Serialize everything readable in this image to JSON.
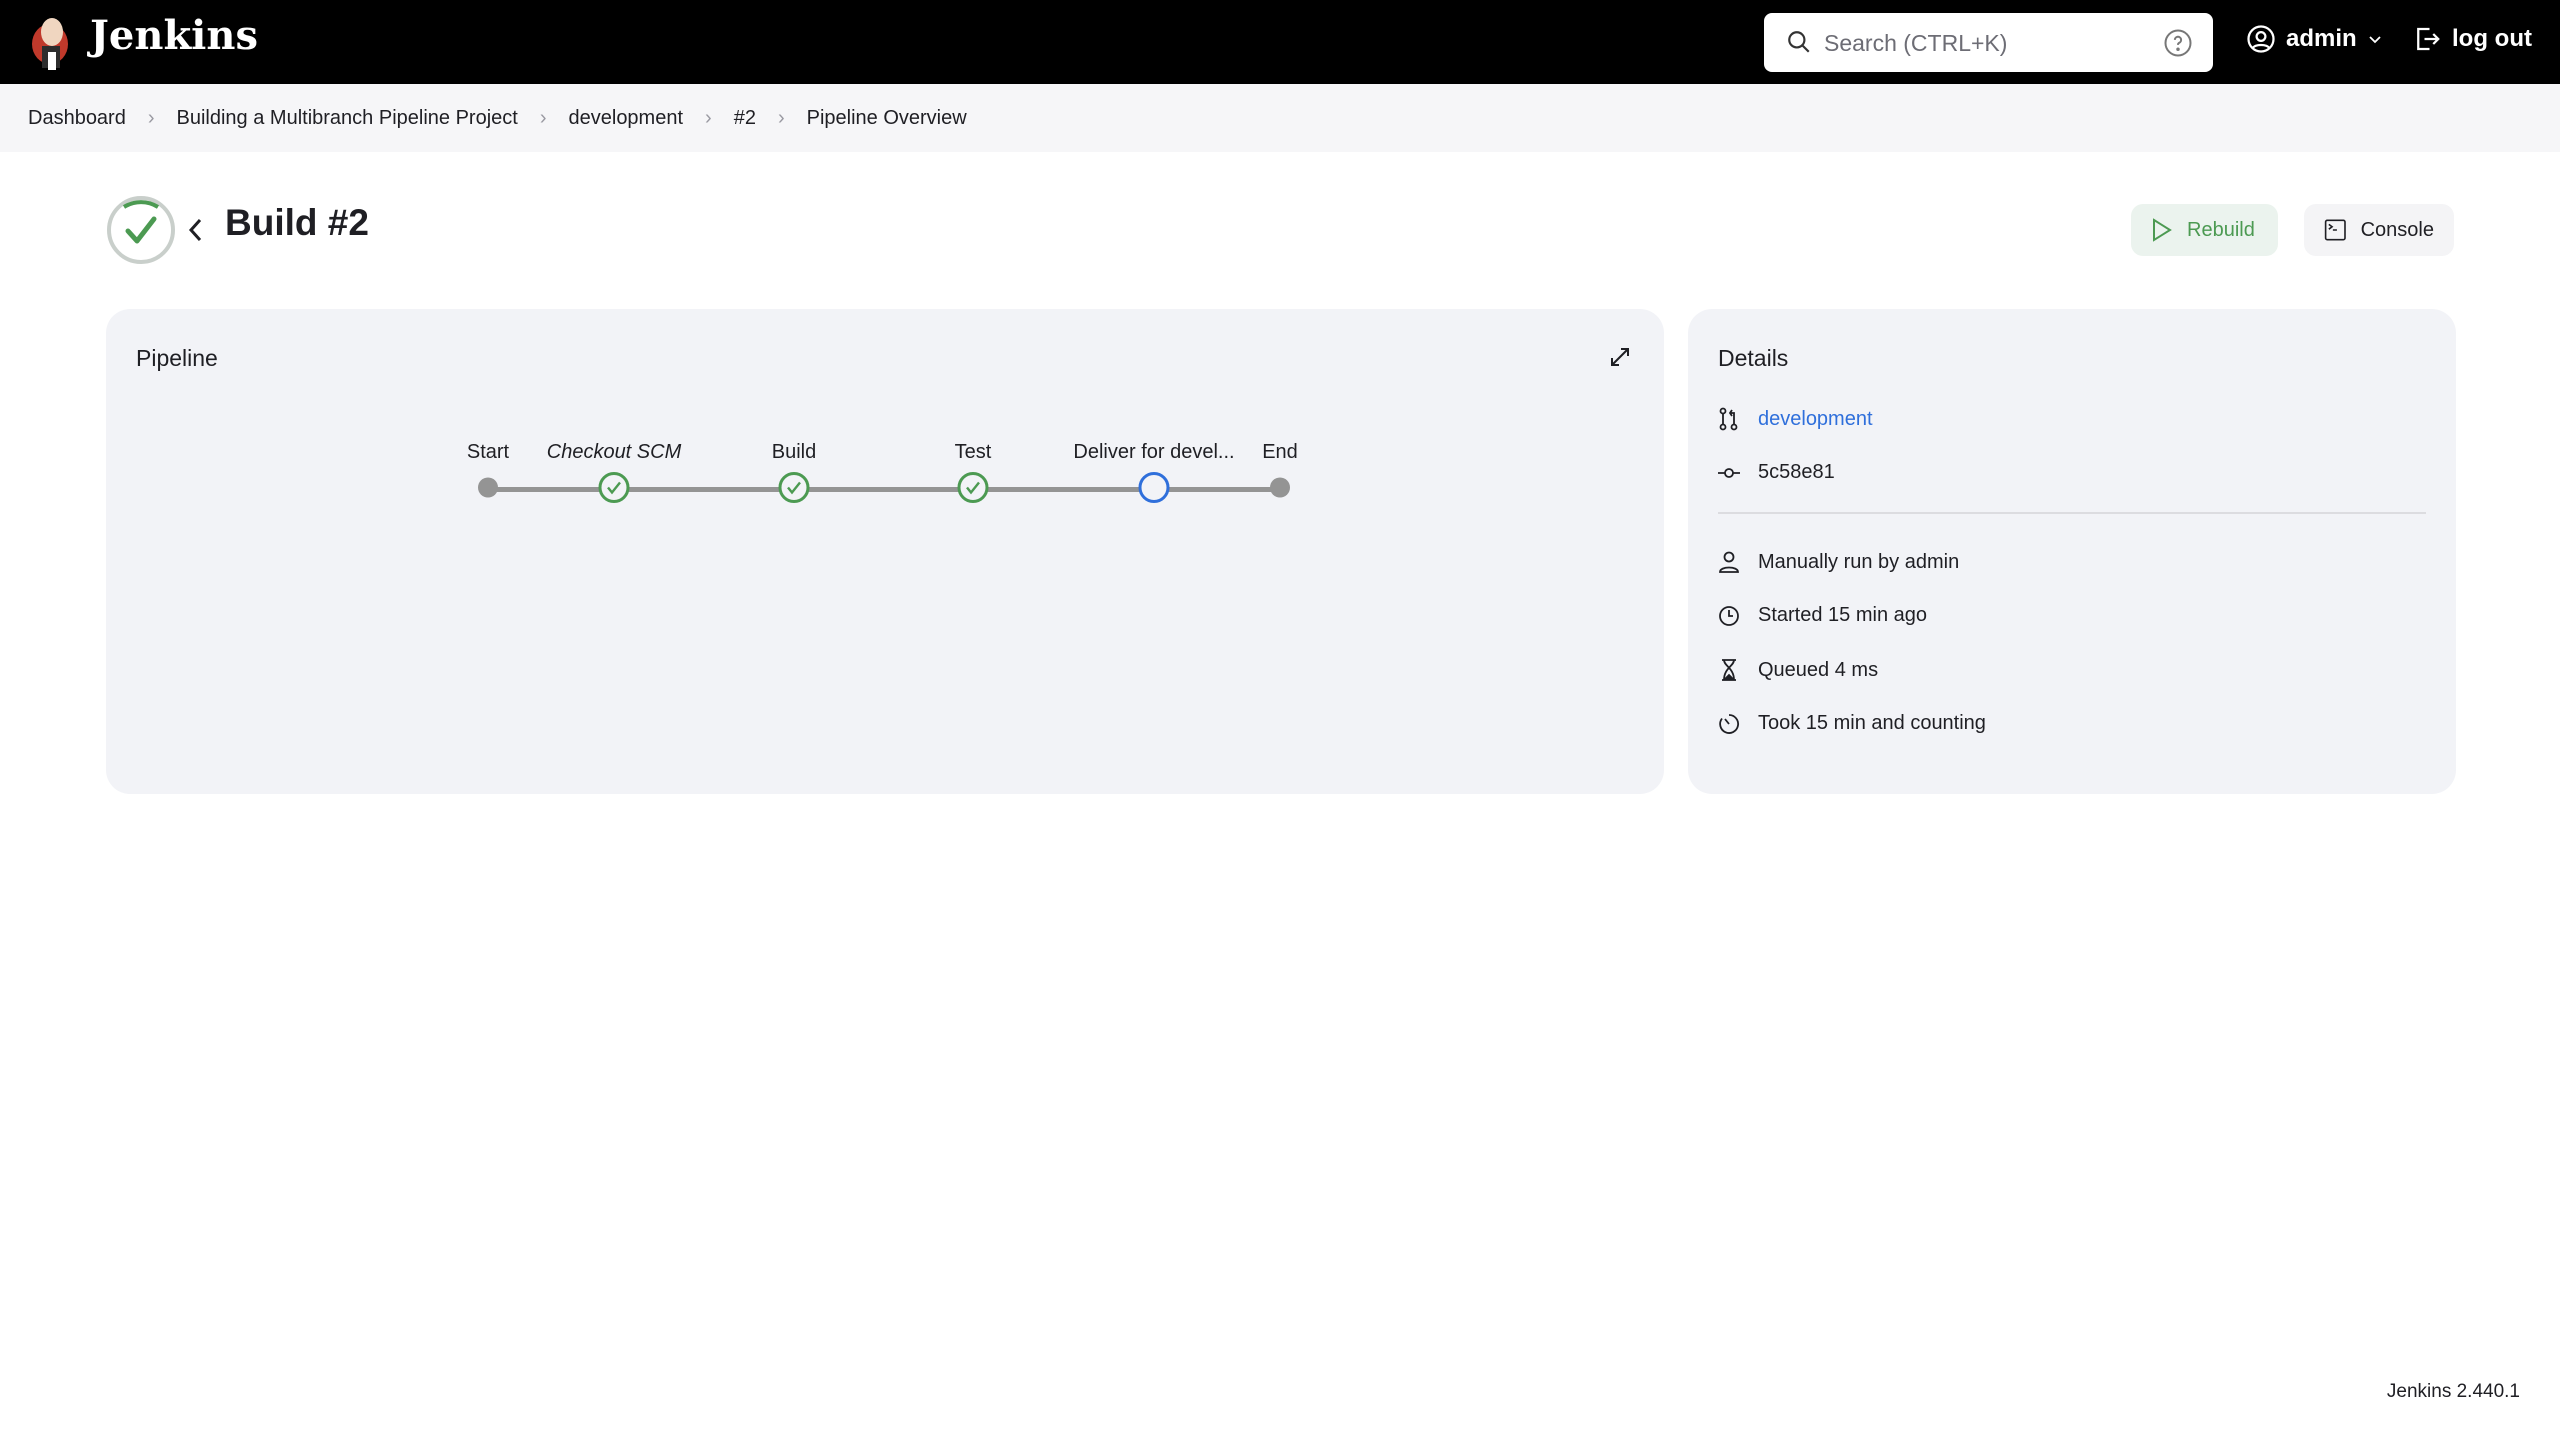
{
  "header": {
    "brand": "Jenkins",
    "search_placeholder": "Search (CTRL+K)",
    "user": "admin",
    "logout": "log out"
  },
  "breadcrumbs": [
    "Dashboard",
    "Building a Multibranch Pipeline Project",
    "development",
    "#2",
    "Pipeline Overview"
  ],
  "build": {
    "title": "Build #2",
    "status": "success",
    "rebuild_label": "Rebuild",
    "console_label": "Console"
  },
  "pipeline": {
    "title": "Pipeline",
    "stages": [
      {
        "label": "Start",
        "state": "start"
      },
      {
        "label": "Checkout SCM",
        "state": "success"
      },
      {
        "label": "Build",
        "state": "success"
      },
      {
        "label": "Test",
        "state": "success"
      },
      {
        "label": "Deliver for devel...",
        "state": "running"
      },
      {
        "label": "End",
        "state": "end"
      }
    ]
  },
  "details": {
    "title": "Details",
    "branch": "development",
    "commit": "5c58e81",
    "run_by": "Manually run by admin",
    "started": "Started 15 min ago",
    "queued": "Queued 4 ms",
    "took": "Took 15 min and counting"
  },
  "footer": {
    "version": "Jenkins 2.440.1"
  },
  "colors": {
    "success": "#4c9a52",
    "running": "#2f6fdb",
    "link": "#2f6fdb"
  }
}
